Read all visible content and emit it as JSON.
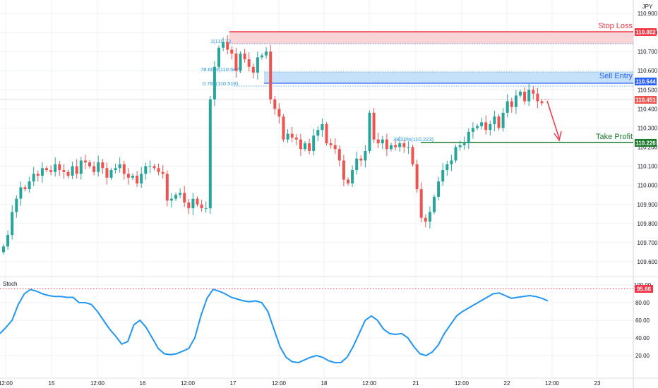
{
  "currency": "JPY",
  "colors": {
    "bull": "#26a69a",
    "bear": "#ef5350",
    "stop": "#f23645",
    "entry": "#2962ff",
    "take": "#1b7a2a",
    "stoch": "#2196f3",
    "grid": "#eef0f4",
    "text": "#131722"
  },
  "chart_data": [
    {
      "type": "candlestick",
      "title": "",
      "yticks": [
        "110.900",
        "110.800",
        "110.700",
        "110.600",
        "110.500",
        "110.400",
        "110.300",
        "110.200",
        "110.100",
        "110.000",
        "109.900",
        "109.800",
        "109.700",
        "109.600"
      ],
      "ylim": [
        109.55,
        110.93
      ],
      "x_tick_labels": [
        "12:00",
        "15",
        "12:00",
        "16",
        "12:00",
        "17",
        "12:00",
        "18",
        "12:00",
        "21",
        "12:00",
        "22",
        "12:00",
        "23"
      ],
      "price_tags": {
        "stop_loss": "110.802",
        "sell_entry": "110.544",
        "current": "110.451",
        "take_profit": "110.226"
      },
      "annotations": {
        "stop_loss": "Stop Loss",
        "sell_entry": "Sell Entry",
        "take_profit": "Take Profit",
        "fib_1": "1(110.73",
        "fib_786": "78.60%(110.587)",
        "fib_0786": "0.786(110.518)",
        "fib_382": "38.20%(110.223)"
      },
      "close_series": [
        109.68,
        109.74,
        109.86,
        109.93,
        109.99,
        109.98,
        110.02,
        110.06,
        110.05,
        110.09,
        110.08,
        110.07,
        110.11,
        110.08,
        110.07,
        110.05,
        110.1,
        110.06,
        110.13,
        110.12,
        110.1,
        110.07,
        110.12,
        110.09,
        110.04,
        110.08,
        110.09,
        110.11,
        110.06,
        110.04,
        110.05,
        110.01,
        110.06,
        110.1,
        110.1,
        110.09,
        110.07,
        110.06,
        109.92,
        109.93,
        109.95,
        109.96,
        109.91,
        109.88,
        109.93,
        109.9,
        109.88,
        109.88,
        110.45,
        110.62,
        110.72,
        110.75,
        110.71,
        110.69,
        110.6,
        110.69,
        110.66,
        110.62,
        110.59,
        110.67,
        110.68,
        110.7,
        110.45,
        110.4,
        110.36,
        110.24,
        110.27,
        110.25,
        110.24,
        110.19,
        110.22,
        110.18,
        110.26,
        110.29,
        110.32,
        110.22,
        110.21,
        110.19,
        110.13,
        110.03,
        110.01,
        110.08,
        110.14,
        110.13,
        110.18,
        110.38,
        110.24,
        110.22,
        110.24,
        110.19,
        110.21,
        110.2,
        110.22,
        110.2,
        110.2,
        110.11,
        109.98,
        109.83,
        109.81,
        109.86,
        109.94,
        110.02,
        110.08,
        110.11,
        110.13,
        110.2,
        110.21,
        110.22,
        110.28,
        110.3,
        110.31,
        110.33,
        110.29,
        110.32,
        110.36,
        110.3,
        110.38,
        110.44,
        110.41,
        110.47,
        110.49,
        110.44,
        110.5,
        110.48,
        110.44,
        110.43
      ]
    },
    {
      "type": "line",
      "title": "Stoch",
      "series": [
        {
          "values": [
            45,
            52,
            60,
            78,
            90,
            95,
            93,
            90,
            88,
            87,
            87,
            86,
            86,
            80,
            80,
            78,
            70,
            60,
            50,
            42,
            33,
            36,
            55,
            60,
            52,
            40,
            28,
            22,
            21,
            22,
            25,
            28,
            40,
            65,
            85,
            95,
            93,
            90,
            86,
            84,
            82,
            81,
            82,
            80,
            70,
            50,
            30,
            18,
            13,
            12,
            15,
            18,
            20,
            18,
            14,
            12,
            12,
            18,
            30,
            45,
            60,
            65,
            60,
            50,
            45,
            44,
            45,
            40,
            30,
            22,
            20,
            24,
            32,
            45,
            55,
            65,
            70,
            74,
            78,
            82,
            86,
            90,
            91,
            88,
            85,
            86,
            87,
            88,
            87,
            85,
            82
          ]
        }
      ],
      "yticks": [
        "100.00",
        "80.00",
        "60.00",
        "40.00",
        "20.00"
      ],
      "ylim": [
        0,
        100
      ],
      "level_tag": "95.66"
    }
  ]
}
